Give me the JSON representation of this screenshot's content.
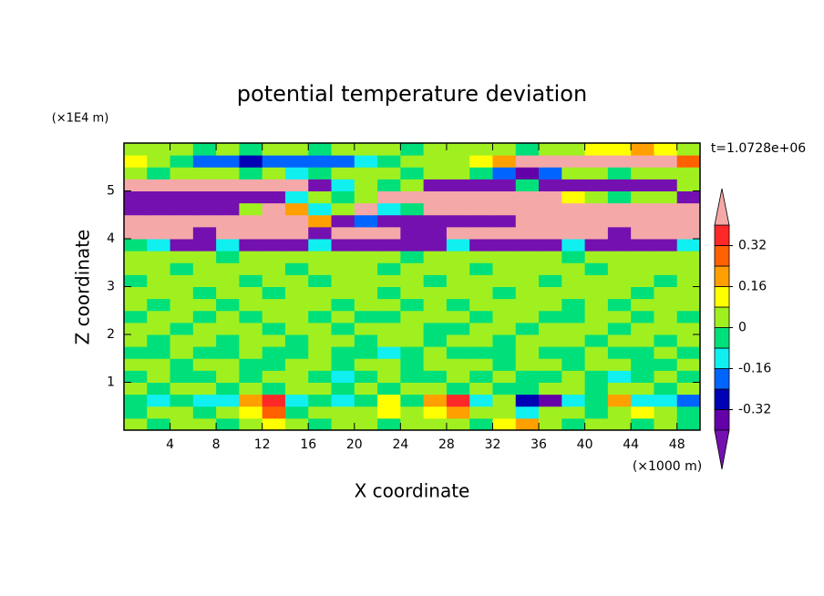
{
  "chart_data": {
    "type": "contour",
    "title": "potential temperature deviation",
    "time_label": "t=1.0728e+06",
    "x_label": "X coordinate",
    "y_label": "Z coordinate",
    "x_unit": "(×1000 m)",
    "y_unit": "(×1E4 m)",
    "xlim": [
      0,
      50
    ],
    "ylim": [
      0,
      6
    ],
    "xticks": [
      4,
      8,
      12,
      16,
      20,
      24,
      28,
      32,
      36,
      40,
      44,
      48
    ],
    "yticks": [
      1,
      2,
      3,
      4,
      5
    ],
    "x": [
      1,
      3,
      5,
      7,
      9,
      11,
      13,
      15,
      17,
      19,
      21,
      23,
      25,
      27,
      29,
      31,
      33,
      35,
      37,
      39,
      41,
      43,
      45,
      47,
      49
    ],
    "y": [
      0.125,
      0.375,
      0.625,
      0.875,
      1.125,
      1.375,
      1.625,
      1.875,
      2.125,
      2.375,
      2.625,
      2.875,
      3.125,
      3.375,
      3.625,
      3.875,
      4.125,
      4.375,
      4.625,
      4.875,
      5.125,
      5.375,
      5.625,
      5.875
    ],
    "values": [
      [
        0.04,
        -0.04,
        0.04,
        0.04,
        -0.04,
        0.04,
        0.12,
        0.04,
        -0.04,
        0.04,
        0.04,
        -0.04,
        0.04,
        0.04,
        0.04,
        -0.04,
        0.12,
        0.2,
        0.04,
        -0.04,
        0.04,
        0.04,
        -0.04,
        0.04,
        -0.04
      ],
      [
        -0.04,
        0.04,
        0.04,
        -0.04,
        0.04,
        0.12,
        0.28,
        -0.04,
        0.04,
        0.04,
        0.04,
        0.12,
        0.04,
        0.12,
        0.2,
        0.04,
        0.04,
        -0.12,
        0.04,
        0.04,
        -0.04,
        0.04,
        0.12,
        0.04,
        -0.04
      ],
      [
        -0.04,
        -0.12,
        -0.04,
        -0.12,
        -0.12,
        0.2,
        0.36,
        -0.12,
        -0.04,
        -0.12,
        -0.04,
        0.12,
        -0.04,
        0.2,
        0.36,
        -0.12,
        0.04,
        -0.28,
        -0.36,
        -0.12,
        -0.04,
        0.2,
        -0.12,
        -0.12,
        -0.2
      ],
      [
        0.04,
        -0.04,
        0.04,
        0.04,
        -0.04,
        0.04,
        -0.04,
        0.04,
        0.04,
        -0.04,
        0.04,
        -0.04,
        0.04,
        0.04,
        -0.04,
        0.04,
        -0.04,
        -0.04,
        0.04,
        0.04,
        -0.04,
        0.04,
        0.04,
        -0.04,
        0.04
      ],
      [
        -0.04,
        0.04,
        -0.04,
        -0.04,
        0.04,
        -0.04,
        0.04,
        0.04,
        -0.04,
        -0.12,
        -0.04,
        0.04,
        -0.04,
        -0.04,
        0.04,
        -0.04,
        0.04,
        -0.04,
        -0.04,
        0.04,
        -0.04,
        -0.12,
        -0.04,
        0.04,
        -0.04
      ],
      [
        0.04,
        0.04,
        -0.04,
        0.04,
        0.04,
        -0.04,
        -0.04,
        0.04,
        0.04,
        -0.04,
        0.04,
        0.04,
        -0.04,
        0.04,
        0.04,
        0.04,
        -0.04,
        0.04,
        0.04,
        -0.04,
        0.04,
        0.04,
        -0.04,
        -0.04,
        0.04
      ],
      [
        -0.04,
        -0.04,
        0.04,
        -0.04,
        -0.04,
        0.04,
        -0.04,
        -0.04,
        0.04,
        -0.04,
        -0.04,
        -0.12,
        -0.04,
        0.04,
        -0.04,
        -0.04,
        -0.04,
        0.04,
        -0.04,
        -0.04,
        0.04,
        -0.04,
        -0.04,
        0.04,
        -0.04
      ],
      [
        0.04,
        -0.04,
        0.04,
        0.04,
        -0.04,
        0.04,
        0.04,
        -0.04,
        0.04,
        0.04,
        -0.04,
        0.04,
        0.04,
        -0.04,
        0.04,
        0.04,
        -0.04,
        0.04,
        0.04,
        0.04,
        -0.04,
        0.04,
        0.04,
        -0.04,
        0.04
      ],
      [
        0.04,
        0.04,
        -0.04,
        0.04,
        0.04,
        0.04,
        -0.04,
        0.04,
        0.04,
        -0.04,
        0.04,
        0.04,
        0.04,
        -0.04,
        -0.04,
        0.04,
        0.04,
        -0.04,
        0.04,
        0.04,
        0.04,
        -0.04,
        0.04,
        0.04,
        0.04
      ],
      [
        -0.04,
        0.04,
        0.04,
        -0.04,
        0.04,
        -0.04,
        0.04,
        0.04,
        -0.04,
        0.04,
        -0.04,
        -0.04,
        0.04,
        0.04,
        0.04,
        -0.04,
        0.04,
        0.04,
        -0.04,
        -0.04,
        0.04,
        0.04,
        -0.04,
        0.04,
        -0.04
      ],
      [
        0.04,
        -0.04,
        0.04,
        0.04,
        -0.04,
        0.04,
        0.04,
        0.04,
        0.04,
        -0.04,
        0.04,
        0.04,
        -0.04,
        0.04,
        -0.04,
        0.04,
        0.04,
        0.04,
        0.04,
        -0.04,
        0.04,
        -0.04,
        0.04,
        0.04,
        0.04
      ],
      [
        0.04,
        0.04,
        0.04,
        -0.04,
        0.04,
        0.04,
        -0.04,
        0.04,
        0.04,
        0.04,
        0.04,
        -0.04,
        0.04,
        0.04,
        0.04,
        0.04,
        -0.04,
        0.04,
        0.04,
        0.04,
        0.04,
        0.04,
        -0.04,
        0.04,
        0.04
      ],
      [
        -0.04,
        0.04,
        0.04,
        0.04,
        0.04,
        -0.04,
        0.04,
        0.04,
        -0.04,
        0.04,
        0.04,
        0.04,
        0.04,
        -0.04,
        0.04,
        0.04,
        0.04,
        0.04,
        -0.04,
        0.04,
        0.04,
        0.04,
        0.04,
        -0.04,
        0.04
      ],
      [
        0.04,
        0.04,
        -0.04,
        0.04,
        0.04,
        0.04,
        0.04,
        -0.04,
        0.04,
        0.04,
        0.04,
        -0.04,
        0.04,
        0.04,
        0.04,
        -0.04,
        0.04,
        0.04,
        0.04,
        0.04,
        -0.04,
        0.04,
        0.04,
        0.04,
        0.04
      ],
      [
        0.04,
        0.04,
        0.04,
        0.04,
        -0.04,
        0.04,
        0.04,
        0.04,
        0.04,
        0.04,
        0.04,
        0.04,
        -0.04,
        0.04,
        0.04,
        0.04,
        0.04,
        0.04,
        0.04,
        -0.04,
        0.04,
        0.04,
        0.04,
        0.04,
        0.04
      ],
      [
        -0.04,
        -0.12,
        -0.45,
        -0.45,
        -0.12,
        -0.45,
        -0.45,
        -0.45,
        -0.12,
        -0.45,
        -0.45,
        -0.45,
        -0.45,
        -0.45,
        -0.12,
        -0.45,
        -0.45,
        -0.45,
        -0.45,
        -0.12,
        -0.45,
        -0.45,
        -0.45,
        -0.45,
        -0.12
      ],
      [
        0.45,
        0.45,
        0.45,
        -0.45,
        0.45,
        0.45,
        0.45,
        0.45,
        -0.45,
        0.45,
        0.45,
        0.45,
        -0.45,
        -0.45,
        0.45,
        0.45,
        0.45,
        0.45,
        0.45,
        0.45,
        0.45,
        -0.45,
        0.45,
        0.45,
        0.45
      ],
      [
        0.45,
        0.45,
        0.45,
        0.45,
        0.45,
        0.45,
        0.45,
        0.45,
        0.2,
        -0.45,
        -0.2,
        -0.45,
        -0.45,
        -0.45,
        -0.45,
        -0.45,
        -0.45,
        0.45,
        0.45,
        0.45,
        0.45,
        0.45,
        0.45,
        0.45,
        0.45
      ],
      [
        -0.45,
        -0.45,
        -0.45,
        -0.45,
        -0.45,
        0.04,
        0.45,
        0.2,
        -0.12,
        0.04,
        0.45,
        -0.12,
        -0.04,
        0.45,
        0.45,
        0.45,
        0.45,
        0.45,
        0.45,
        0.45,
        0.45,
        0.45,
        0.45,
        0.45,
        0.45
      ],
      [
        -0.45,
        -0.45,
        -0.45,
        -0.45,
        -0.45,
        -0.45,
        -0.45,
        -0.12,
        0.04,
        -0.04,
        0.04,
        0.45,
        0.45,
        0.45,
        0.45,
        0.45,
        0.45,
        0.45,
        0.45,
        0.12,
        0.04,
        -0.04,
        0.04,
        0.04,
        -0.45
      ],
      [
        0.45,
        0.45,
        0.45,
        0.45,
        0.45,
        0.45,
        0.45,
        0.45,
        -0.45,
        -0.12,
        0.04,
        -0.04,
        0.04,
        -0.45,
        -0.45,
        -0.45,
        -0.45,
        -0.04,
        -0.45,
        -0.45,
        -0.45,
        -0.45,
        -0.45,
        -0.45,
        0.04
      ],
      [
        0.04,
        -0.04,
        0.04,
        0.04,
        0.04,
        -0.04,
        0.04,
        -0.12,
        -0.04,
        0.04,
        0.04,
        0.04,
        -0.04,
        0.04,
        0.04,
        -0.04,
        -0.2,
        -0.36,
        -0.2,
        0.04,
        0.04,
        -0.04,
        0.04,
        0.04,
        0.04
      ],
      [
        0.12,
        0.04,
        -0.04,
        -0.2,
        -0.2,
        -0.28,
        -0.2,
        -0.2,
        -0.2,
        -0.2,
        -0.12,
        -0.04,
        0.04,
        0.04,
        0.04,
        0.12,
        0.2,
        0.45,
        0.45,
        0.45,
        0.45,
        0.45,
        0.45,
        0.45,
        0.28
      ],
      [
        0.04,
        0.04,
        0.04,
        -0.04,
        0.04,
        -0.04,
        0.04,
        0.04,
        -0.04,
        0.04,
        0.04,
        0.04,
        -0.04,
        0.04,
        0.04,
        0.04,
        0.04,
        -0.04,
        0.04,
        0.04,
        0.12,
        0.12,
        0.2,
        0.12,
        0.04
      ]
    ],
    "colorbar": {
      "levels": [
        -0.4,
        -0.32,
        -0.24,
        -0.16,
        -0.08,
        0,
        0.08,
        0.16,
        0.24,
        0.32,
        0.4
      ],
      "colors": [
        "#7410b0",
        "#6400a8",
        "#0000b4",
        "#0064ff",
        "#10f0f0",
        "#00e07a",
        "#a0f020",
        "#ffff00",
        "#ffa000",
        "#ff6000",
        "#ff2828",
        "#f5a8a8"
      ],
      "ticks": [
        -0.32,
        -0.16,
        0,
        0.16,
        0.32
      ]
    }
  }
}
